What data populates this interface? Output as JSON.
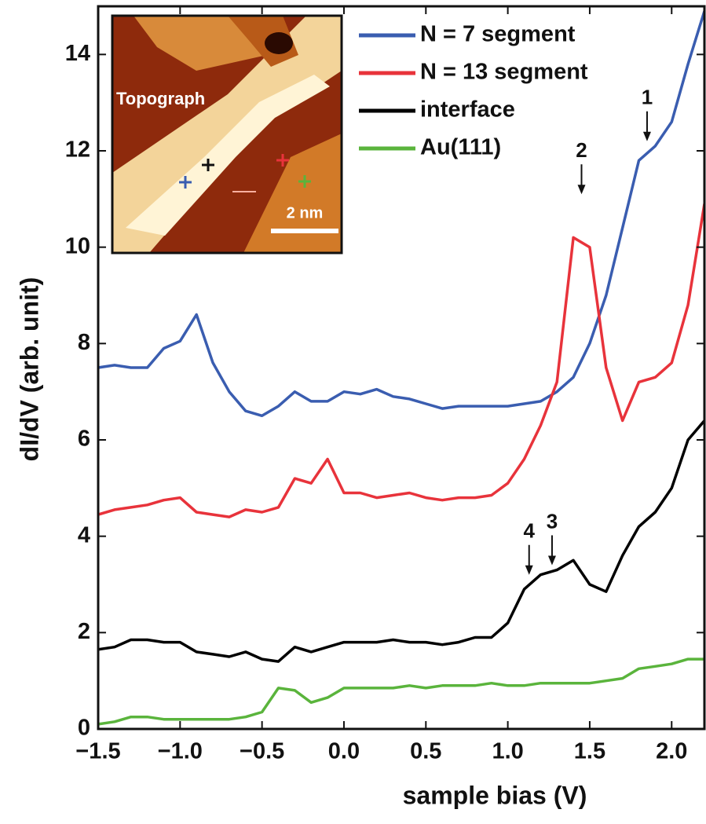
{
  "chart_data": {
    "type": "line",
    "xlabel": "sample bias (V)",
    "ylabel": "dI/dV (arb. unit)",
    "xlim": [
      -1.5,
      2.2
    ],
    "ylim": [
      0,
      15
    ],
    "xticks": [
      {
        "value": -1.5,
        "label": "−1.5"
      },
      {
        "value": -1.0,
        "label": "−1.0"
      },
      {
        "value": -0.5,
        "label": "−0.5"
      },
      {
        "value": 0,
        "label": "0.0"
      },
      0.5,
      {
        "value": 1.0,
        "label": "1.0"
      },
      1.5,
      {
        "value": 2.0,
        "label": "2.0"
      }
    ],
    "yticks": [
      0,
      2,
      4,
      6,
      8,
      10,
      12,
      14
    ],
    "legend": "upper right",
    "x": [
      -1.5,
      -1.4,
      -1.3,
      -1.2,
      -1.1,
      -1.0,
      -0.9,
      -0.8,
      -0.7,
      -0.6,
      -0.5,
      -0.4,
      -0.3,
      -0.2,
      -0.1,
      0.0,
      0.1,
      0.2,
      0.3,
      0.4,
      0.5,
      0.6,
      0.7,
      0.8,
      0.9,
      1.0,
      1.1,
      1.2,
      1.3,
      1.4,
      1.5,
      1.6,
      1.7,
      1.8,
      1.9,
      2.0,
      2.1,
      2.2
    ],
    "series": [
      {
        "name": "N = 7 segment",
        "color": "#3a5db0",
        "values": [
          7.5,
          7.55,
          7.5,
          7.5,
          7.9,
          8.05,
          8.6,
          7.6,
          7.0,
          6.6,
          6.5,
          6.7,
          7.0,
          6.8,
          6.8,
          7.0,
          6.95,
          7.05,
          6.9,
          6.85,
          6.75,
          6.65,
          6.7,
          6.7,
          6.7,
          6.7,
          6.75,
          6.8,
          7.0,
          7.3,
          8.0,
          9.0,
          10.4,
          11.8,
          12.1,
          12.6,
          13.8,
          14.9
        ]
      },
      {
        "name": "N = 13 segment",
        "color": "#e8333b",
        "values": [
          4.45,
          4.55,
          4.6,
          4.65,
          4.75,
          4.8,
          4.5,
          4.45,
          4.4,
          4.55,
          4.5,
          4.6,
          5.2,
          5.1,
          5.6,
          4.9,
          4.9,
          4.8,
          4.85,
          4.9,
          4.8,
          4.75,
          4.8,
          4.8,
          4.85,
          5.1,
          5.6,
          6.3,
          7.2,
          10.2,
          10.0,
          7.5,
          6.4,
          7.2,
          7.3,
          7.6,
          8.8,
          10.9
        ]
      },
      {
        "name": "interface",
        "color": "#000000",
        "values": [
          1.65,
          1.7,
          1.85,
          1.85,
          1.8,
          1.8,
          1.6,
          1.55,
          1.5,
          1.6,
          1.45,
          1.4,
          1.7,
          1.6,
          1.7,
          1.8,
          1.8,
          1.8,
          1.85,
          1.8,
          1.8,
          1.75,
          1.8,
          1.9,
          1.9,
          2.2,
          2.9,
          3.2,
          3.3,
          3.5,
          3.0,
          2.85,
          3.6,
          4.2,
          4.5,
          5.0,
          6.0,
          6.4
        ]
      },
      {
        "name": "Au(111)",
        "color": "#5ab43c",
        "values": [
          0.1,
          0.15,
          0.25,
          0.25,
          0.2,
          0.2,
          0.2,
          0.2,
          0.2,
          0.25,
          0.35,
          0.85,
          0.8,
          0.55,
          0.65,
          0.85,
          0.85,
          0.85,
          0.85,
          0.9,
          0.85,
          0.9,
          0.9,
          0.9,
          0.95,
          0.9,
          0.9,
          0.95,
          0.95,
          0.95,
          0.95,
          1.0,
          1.05,
          1.25,
          1.3,
          1.35,
          1.45,
          1.45
        ]
      }
    ],
    "annotations": [
      {
        "text": "1",
        "x": 1.85,
        "y": 12.2
      },
      {
        "text": "2",
        "x": 1.45,
        "y": 11.1
      },
      {
        "text": "3",
        "x": 1.27,
        "y": 3.4
      },
      {
        "text": "4",
        "x": 1.13,
        "y": 3.2
      }
    ]
  },
  "inset": {
    "title": "Topograph",
    "scale_label": "2 nm"
  }
}
